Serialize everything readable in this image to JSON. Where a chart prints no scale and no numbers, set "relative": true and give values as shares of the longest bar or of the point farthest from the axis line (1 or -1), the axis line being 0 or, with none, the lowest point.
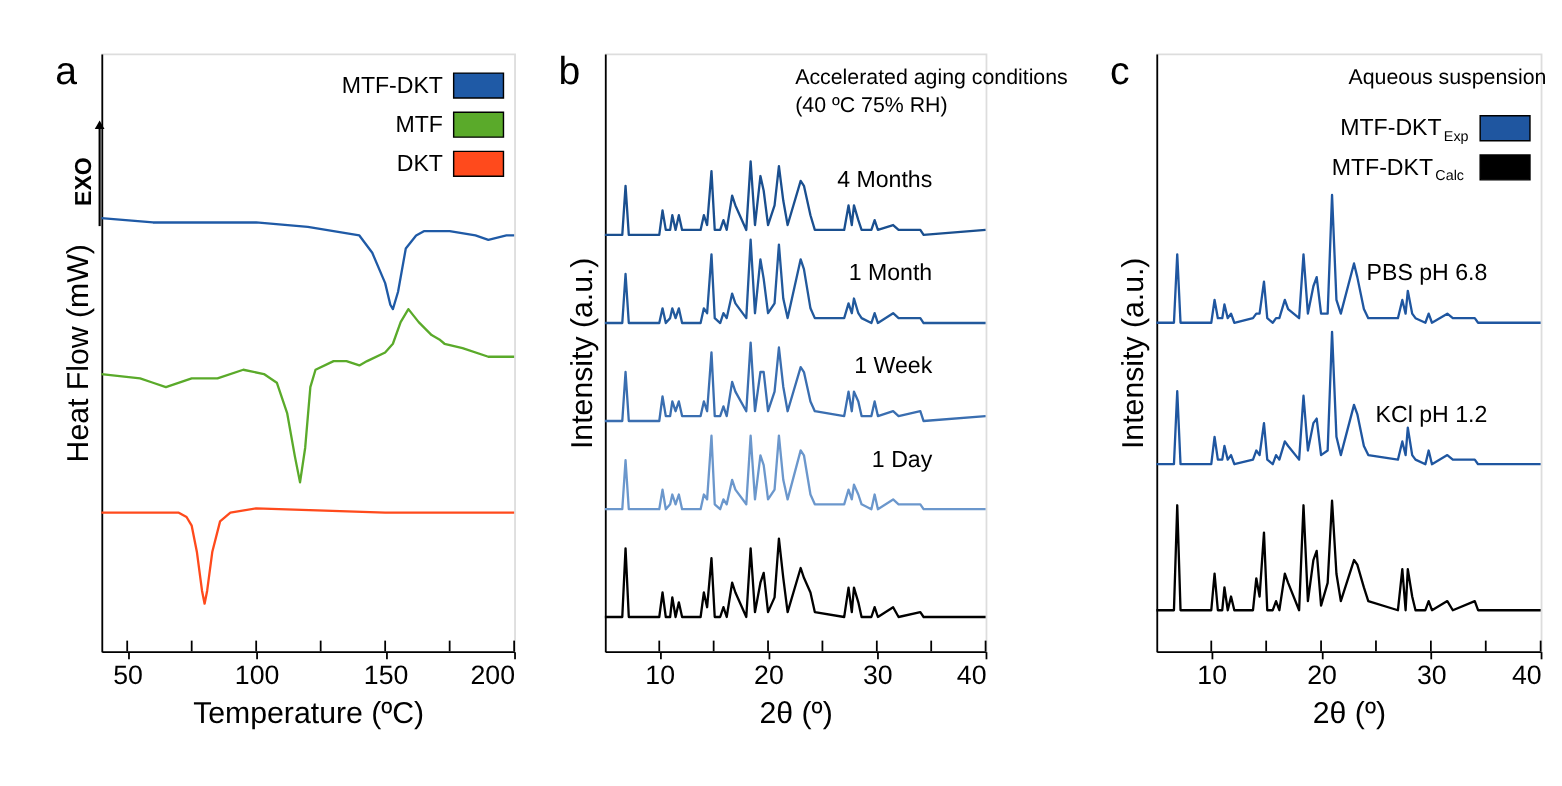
{
  "chart_data": [
    {
      "type": "line",
      "relative": true,
      "xlabel": "Temperature (ºC)",
      "ylabel": "Heat Flow (mW)",
      "xlim": [
        40,
        200
      ],
      "xticks": [
        50,
        {
          "value": 75,
          "label": null
        },
        100,
        {
          "value": 125,
          "label": null
        },
        150,
        {
          "value": 175,
          "label": null
        },
        200
      ],
      "legend": "top right",
      "grid": false,
      "tick_labels": "x",
      "annotations": [
        "a",
        "EXO"
      ],
      "series": [
        {
          "name": "MTF-DKT",
          "color": "#1f5aa6",
          "x": [
            40,
            60,
            80,
            100,
            120,
            130,
            140,
            145,
            150,
            152,
            153,
            155,
            158,
            162,
            165,
            175,
            185,
            190,
            197,
            200
          ],
          "values": [
            1.0,
            0.99,
            0.99,
            0.99,
            0.98,
            0.97,
            0.96,
            0.92,
            0.85,
            0.8,
            0.79,
            0.83,
            0.93,
            0.96,
            0.97,
            0.97,
            0.96,
            0.95,
            0.96,
            0.96
          ]
        },
        {
          "name": "MTF",
          "color": "#5aaa2a",
          "x": [
            40,
            55,
            60,
            65,
            75,
            85,
            95,
            103,
            108,
            112,
            115,
            117,
            119,
            121,
            123,
            130,
            135,
            140,
            143,
            150,
            153,
            156,
            159,
            163,
            168,
            171,
            173,
            180,
            190,
            200
          ],
          "values": [
            0.64,
            0.63,
            0.62,
            0.61,
            0.63,
            0.63,
            0.65,
            0.64,
            0.62,
            0.55,
            0.45,
            0.39,
            0.47,
            0.61,
            0.65,
            0.67,
            0.67,
            0.66,
            0.67,
            0.69,
            0.71,
            0.76,
            0.79,
            0.76,
            0.73,
            0.72,
            0.71,
            0.7,
            0.68,
            0.68
          ]
        },
        {
          "name": "DKT",
          "color": "#ff4a1c",
          "x": [
            40,
            70,
            73,
            75,
            77,
            79,
            80,
            81,
            83,
            86,
            90,
            100,
            150,
            200
          ],
          "values": [
            0.32,
            0.32,
            0.31,
            0.29,
            0.23,
            0.14,
            0.11,
            0.14,
            0.23,
            0.3,
            0.32,
            0.33,
            0.32,
            0.32
          ]
        }
      ]
    },
    {
      "type": "line",
      "relative": true,
      "title": "Accelerated aging conditions",
      "subtitle": "(40 ºC 75% RH)",
      "xlabel": "2θ (º)",
      "ylabel": "Intensity (a.u.)",
      "xlim": [
        5,
        40
      ],
      "xticks": [
        10,
        {
          "value": 15,
          "label": null
        },
        20,
        {
          "value": 25,
          "label": null
        },
        30,
        {
          "value": 35,
          "label": null
        },
        40
      ],
      "grid": false,
      "tick_labels": "x",
      "annotations": [
        "b"
      ],
      "x": [
        5,
        6.6,
        6.9,
        7.2,
        10.0,
        10.3,
        10.6,
        11.0,
        11.2,
        11.5,
        11.8,
        12.1,
        13.8,
        14.1,
        14.4,
        14.8,
        15.1,
        15.6,
        15.9,
        16.2,
        16.7,
        17.0,
        18.0,
        18.4,
        18.8,
        19.3,
        19.6,
        20.0,
        20.6,
        21.0,
        21.4,
        21.8,
        23.0,
        23.3,
        23.9,
        24.3,
        27.0,
        27.4,
        27.7,
        27.9,
        28.3,
        28.6,
        29.5,
        29.8,
        30.1,
        31.5,
        32.0,
        34.0,
        34.3,
        40
      ],
      "series": [
        {
          "name": "4 Months",
          "color": "#1a4f8f",
          "values": [
            0.85,
            0.85,
            0.95,
            0.85,
            0.85,
            0.9,
            0.86,
            0.86,
            0.89,
            0.86,
            0.89,
            0.86,
            0.86,
            0.89,
            0.87,
            0.98,
            0.86,
            0.86,
            0.88,
            0.86,
            0.93,
            0.91,
            0.86,
            1.0,
            0.87,
            0.97,
            0.94,
            0.87,
            0.91,
            0.99,
            0.92,
            0.87,
            0.96,
            0.95,
            0.89,
            0.86,
            0.86,
            0.91,
            0.87,
            0.91,
            0.88,
            0.86,
            0.86,
            0.88,
            0.86,
            0.87,
            0.86,
            0.86,
            0.85,
            0.86
          ]
        },
        {
          "name": "1 Month",
          "color": "#22599c",
          "values": [
            0.67,
            0.67,
            0.77,
            0.67,
            0.67,
            0.7,
            0.67,
            0.68,
            0.7,
            0.68,
            0.7,
            0.67,
            0.67,
            0.7,
            0.69,
            0.81,
            0.68,
            0.67,
            0.69,
            0.68,
            0.73,
            0.71,
            0.68,
            0.84,
            0.69,
            0.8,
            0.76,
            0.69,
            0.71,
            0.83,
            0.72,
            0.68,
            0.8,
            0.78,
            0.7,
            0.68,
            0.68,
            0.71,
            0.69,
            0.72,
            0.69,
            0.68,
            0.67,
            0.69,
            0.67,
            0.69,
            0.68,
            0.68,
            0.67,
            0.67
          ]
        },
        {
          "name": "1 Week",
          "color": "#3a6eb0",
          "values": [
            0.47,
            0.47,
            0.57,
            0.47,
            0.47,
            0.52,
            0.48,
            0.48,
            0.51,
            0.49,
            0.51,
            0.48,
            0.48,
            0.51,
            0.49,
            0.61,
            0.48,
            0.48,
            0.5,
            0.48,
            0.55,
            0.53,
            0.49,
            0.63,
            0.49,
            0.57,
            0.57,
            0.49,
            0.53,
            0.62,
            0.54,
            0.49,
            0.58,
            0.57,
            0.51,
            0.49,
            0.48,
            0.53,
            0.49,
            0.53,
            0.51,
            0.48,
            0.48,
            0.51,
            0.48,
            0.49,
            0.48,
            0.49,
            0.47,
            0.48
          ]
        },
        {
          "name": "1 Day",
          "color": "#6b97cc",
          "values": [
            0.29,
            0.29,
            0.39,
            0.29,
            0.29,
            0.33,
            0.29,
            0.3,
            0.32,
            0.3,
            0.32,
            0.29,
            0.29,
            0.32,
            0.31,
            0.44,
            0.3,
            0.29,
            0.31,
            0.3,
            0.35,
            0.33,
            0.3,
            0.44,
            0.31,
            0.4,
            0.38,
            0.31,
            0.33,
            0.44,
            0.35,
            0.31,
            0.41,
            0.4,
            0.32,
            0.3,
            0.3,
            0.33,
            0.31,
            0.34,
            0.32,
            0.3,
            0.29,
            0.32,
            0.29,
            0.31,
            0.3,
            0.3,
            0.29,
            0.29
          ]
        },
        {
          "color": "#000000",
          "values": [
            0.07,
            0.07,
            0.21,
            0.07,
            0.07,
            0.12,
            0.07,
            0.07,
            0.11,
            0.07,
            0.1,
            0.07,
            0.07,
            0.12,
            0.09,
            0.19,
            0.07,
            0.07,
            0.09,
            0.07,
            0.14,
            0.12,
            0.07,
            0.21,
            0.08,
            0.14,
            0.16,
            0.08,
            0.11,
            0.23,
            0.15,
            0.08,
            0.17,
            0.15,
            0.12,
            0.08,
            0.07,
            0.13,
            0.08,
            0.13,
            0.1,
            0.07,
            0.07,
            0.09,
            0.07,
            0.09,
            0.07,
            0.08,
            0.07,
            0.07
          ]
        }
      ]
    },
    {
      "type": "line",
      "relative": true,
      "title": "Aqueous suspension",
      "xlabel": "2θ (º)",
      "ylabel": "Intensity (a.u.)",
      "xlim": [
        5,
        40
      ],
      "xticks": [
        10,
        {
          "value": 15,
          "label": null
        },
        20,
        {
          "value": 25,
          "label": null
        },
        30,
        {
          "value": 35,
          "label": null
        },
        40
      ],
      "legend": "top right",
      "grid": false,
      "tick_labels": "x",
      "annotations": [
        "c",
        "PBS pH 6.8",
        "KCl pH 1.2"
      ],
      "x": [
        5,
        6.6,
        6.9,
        7.2,
        10.0,
        10.3,
        10.6,
        11.0,
        11.2,
        11.5,
        11.8,
        12.1,
        13.8,
        14.1,
        14.4,
        14.8,
        15.1,
        15.6,
        15.9,
        16.2,
        16.7,
        17.0,
        18.0,
        18.4,
        18.8,
        19.3,
        19.6,
        20.0,
        20.6,
        21.0,
        21.4,
        21.8,
        23.0,
        23.3,
        23.9,
        24.3,
        27.0,
        27.4,
        27.7,
        27.9,
        28.3,
        28.6,
        29.5,
        29.8,
        30.1,
        31.5,
        32.0,
        34.0,
        34.3,
        40
      ],
      "series": [
        {
          "name": "MTF-DKT$_{Exp}$",
          "color": "#1f56a0",
          "values": [
            0.72,
            0.72,
            0.87,
            0.72,
            0.72,
            0.77,
            0.73,
            0.73,
            0.76,
            0.73,
            0.74,
            0.72,
            0.73,
            0.74,
            0.74,
            0.81,
            0.73,
            0.72,
            0.73,
            0.73,
            0.77,
            0.75,
            0.73,
            0.87,
            0.74,
            0.8,
            0.82,
            0.74,
            0.74,
            1.0,
            0.77,
            0.74,
            0.85,
            0.82,
            0.75,
            0.73,
            0.73,
            0.77,
            0.74,
            0.79,
            0.74,
            0.73,
            0.72,
            0.74,
            0.72,
            0.74,
            0.73,
            0.73,
            0.72,
            0.72
          ]
        },
        {
          "color": "#1f56a0",
          "values": [
            0.41,
            0.41,
            0.57,
            0.41,
            0.41,
            0.47,
            0.42,
            0.42,
            0.45,
            0.42,
            0.43,
            0.41,
            0.42,
            0.44,
            0.43,
            0.5,
            0.42,
            0.41,
            0.43,
            0.42,
            0.46,
            0.45,
            0.42,
            0.56,
            0.44,
            0.5,
            0.51,
            0.43,
            0.44,
            0.7,
            0.47,
            0.43,
            0.54,
            0.52,
            0.45,
            0.43,
            0.42,
            0.46,
            0.43,
            0.49,
            0.43,
            0.42,
            0.41,
            0.44,
            0.41,
            0.43,
            0.42,
            0.42,
            0.41,
            0.41
          ]
        },
        {
          "name": "MTF-DKT$_{Calc}$",
          "color": "#000000",
          "values": [
            0.09,
            0.09,
            0.32,
            0.09,
            0.09,
            0.17,
            0.09,
            0.09,
            0.14,
            0.09,
            0.12,
            0.09,
            0.09,
            0.16,
            0.12,
            0.26,
            0.09,
            0.09,
            0.11,
            0.09,
            0.17,
            0.15,
            0.09,
            0.32,
            0.11,
            0.2,
            0.22,
            0.1,
            0.15,
            0.33,
            0.17,
            0.11,
            0.2,
            0.19,
            0.14,
            0.11,
            0.09,
            0.18,
            0.09,
            0.18,
            0.12,
            0.09,
            0.09,
            0.11,
            0.09,
            0.11,
            0.09,
            0.11,
            0.09,
            0.09
          ]
        }
      ]
    }
  ]
}
